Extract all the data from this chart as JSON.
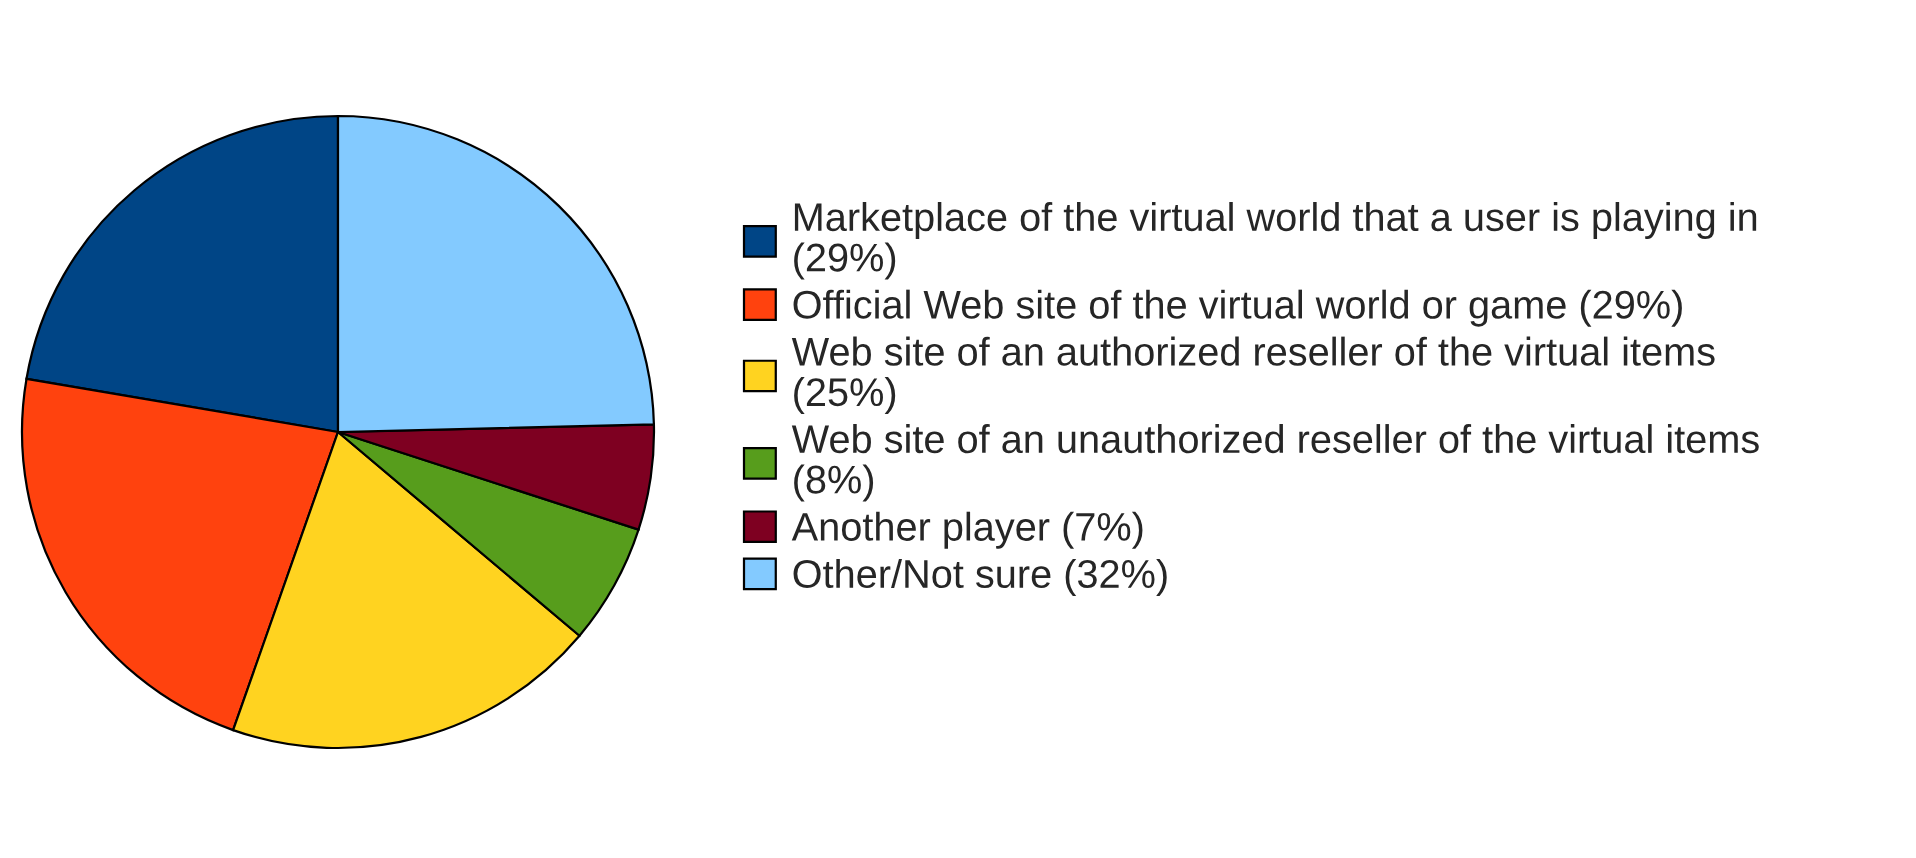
{
  "chart_data": {
    "type": "pie",
    "categories": [
      "Marketplace of the virtual world that a user is playing in\n(29%)",
      "Official Web site of the virtual world or game (29%)",
      "Web site of an authorized reseller of the virtual items\n(25%)",
      "Web site of an unauthorized reseller of the virtual items\n(8%)",
      "Another player (7%)",
      "Other/Not sure (32%)"
    ],
    "values": [
      29,
      29,
      25,
      8,
      7,
      32
    ],
    "colors": [
      "#004586",
      "#ff420e",
      "#ffd320",
      "#579d1c",
      "#7e0021",
      "#83caff"
    ],
    "legend": "right"
  }
}
